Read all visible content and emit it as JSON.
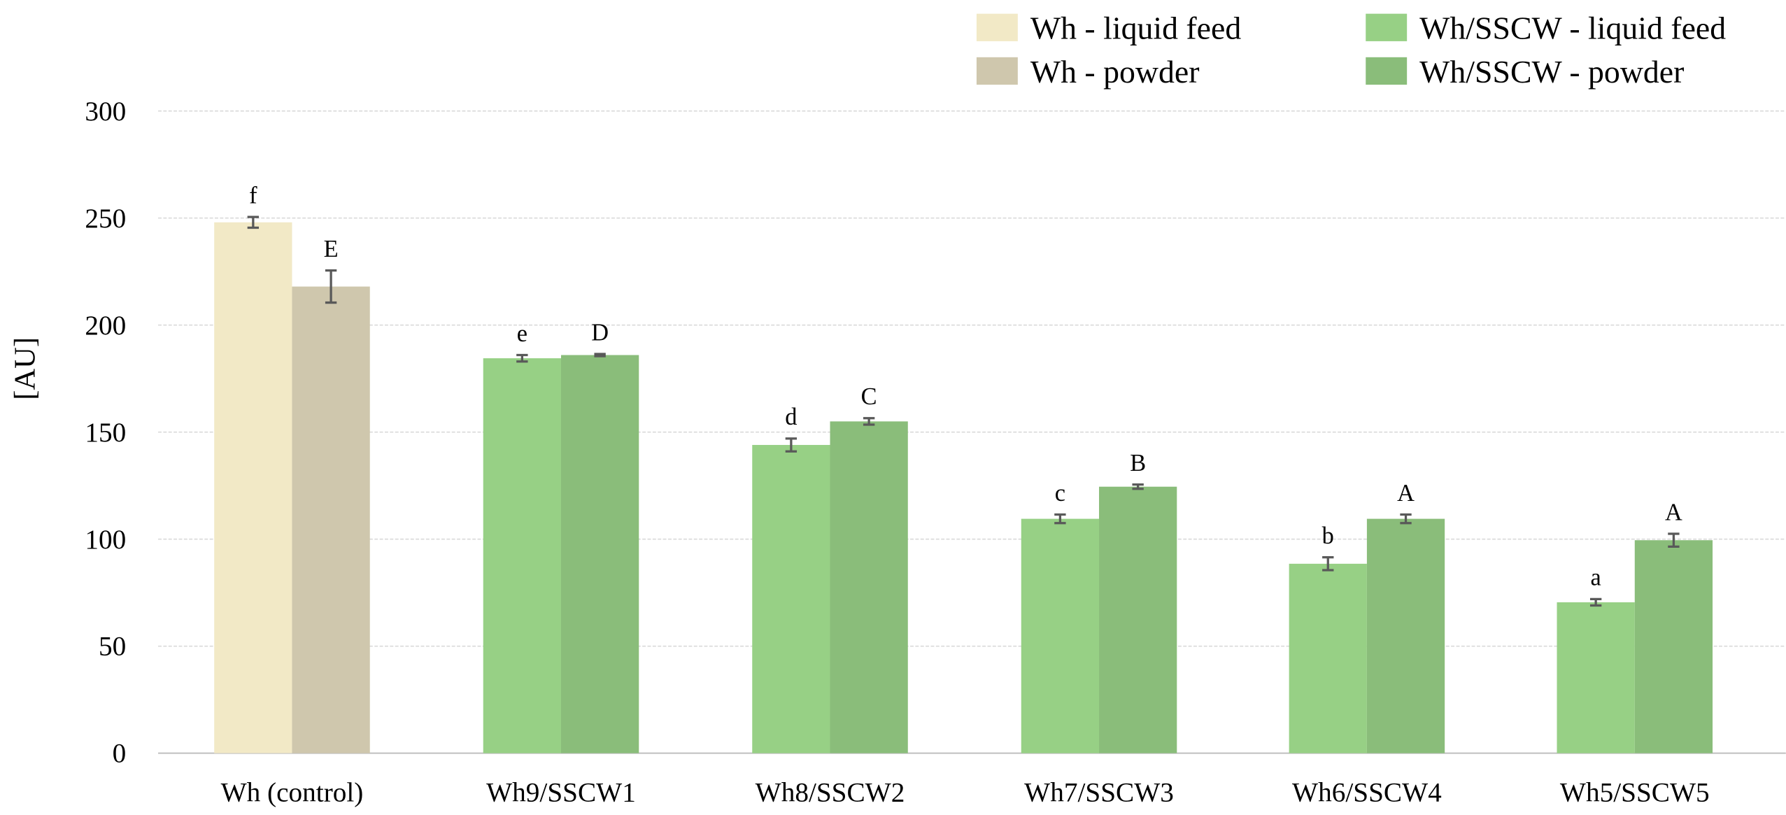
{
  "chart_data": {
    "type": "bar",
    "title": "",
    "xlabel": "",
    "ylabel": "[AU]",
    "ylim": [
      0,
      300
    ],
    "yticks": [
      0,
      50,
      100,
      150,
      200,
      250,
      300
    ],
    "grid": true,
    "legend_placement": "top-right",
    "categories": [
      "Wh (control)",
      "Wh9/SSCW1",
      "Wh8/SSCW2",
      "Wh7/SSCW3",
      "Wh6/SSCW4",
      "Wh5/SSCW5"
    ],
    "legend": [
      {
        "name": "Wh - liquid feed",
        "color": "#f2e9c6"
      },
      {
        "name": "Wh - powder",
        "color": "#cfc7ad"
      },
      {
        "name": "Wh/SSCW - liquid feed",
        "color": "#97d085"
      },
      {
        "name": "Wh/SSCW - powder",
        "color": "#8abd7a"
      }
    ],
    "series": [
      {
        "values": [
          248,
          184.5,
          144,
          109.5,
          88.5,
          70.5
        ],
        "errors": [
          2.5,
          1.5,
          3,
          2,
          3,
          1.5
        ],
        "letters": [
          "f",
          "e",
          "d",
          "c",
          "b",
          "a"
        ],
        "colors": [
          "#f2e9c6",
          "#97d085",
          "#97d085",
          "#97d085",
          "#97d085",
          "#97d085"
        ]
      },
      {
        "values": [
          218,
          186,
          155,
          124.5,
          109.5,
          99.5
        ],
        "errors": [
          7.5,
          0.5,
          1.5,
          1,
          2,
          3
        ],
        "letters": [
          "E",
          "D",
          "C",
          "B",
          "A",
          "A"
        ],
        "colors": [
          "#cfc7ad",
          "#8abd7a",
          "#8abd7a",
          "#8abd7a",
          "#8abd7a",
          "#8abd7a"
        ]
      }
    ],
    "errorbar_color": "#595959",
    "gridline_color": "#d9d9d9"
  }
}
